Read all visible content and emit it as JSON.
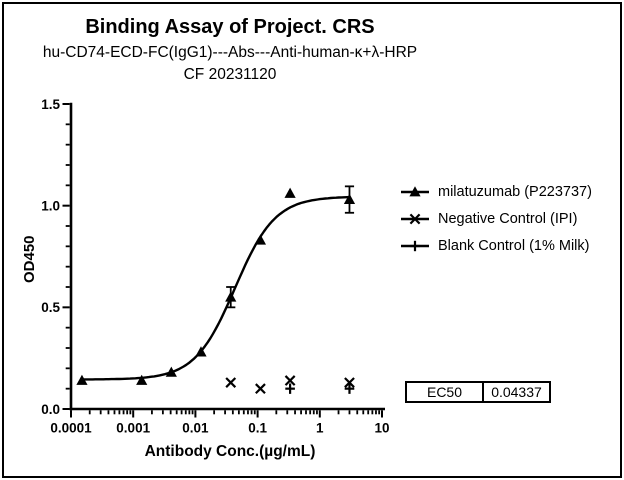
{
  "heading": {
    "title": "Binding Assay of Project. CRS",
    "subtitle": "hu-CD74-ECD-FC(IgG1)---Abs---Anti-human-κ+λ-HRP",
    "line3": "CF 20231120"
  },
  "chart_data": {
    "type": "scatter",
    "log_x": true,
    "grid": false,
    "legend_position": "right",
    "xlabel": "Antibody Conc.(µg/mL)",
    "ylabel": "OD450",
    "xlim": [
      0.0001,
      10
    ],
    "ylim": [
      0.0,
      1.5
    ],
    "x_ticks": [
      0.0001,
      0.001,
      0.01,
      0.1,
      1,
      10
    ],
    "x_tick_labels": [
      "0.0001",
      "0.001",
      "0.01",
      "0.1",
      "1",
      "10"
    ],
    "y_ticks": [
      0.0,
      0.5,
      1.0,
      1.5
    ],
    "y_tick_labels": [
      "0.0",
      "0.5",
      "1.0",
      "1.5"
    ],
    "y_minor_step": 0.1,
    "axis_color": "#000000",
    "series": [
      {
        "name": "milatuzumab (P223737)",
        "marker": "triangle",
        "color": "#000000",
        "x": [
          0.00015,
          0.00137,
          0.0041,
          0.0123,
          0.037,
          0.111,
          0.333,
          3
        ],
        "y": [
          0.14,
          0.14,
          0.18,
          0.28,
          0.55,
          0.83,
          1.06,
          1.03
        ],
        "yerr": [
          0,
          0,
          0,
          0,
          0.05,
          0,
          0,
          0.065
        ],
        "fit": {
          "type": "4PL",
          "bottom": 0.145,
          "top": 1.045,
          "ec50": 0.04337,
          "hillslope": 1.35,
          "x_range": [
            0.00015,
            3
          ]
        }
      },
      {
        "name": "Negative Control (IPI)",
        "marker": "x",
        "color": "#000000",
        "x": [
          0.037,
          0.111,
          0.333,
          3
        ],
        "y": [
          0.13,
          0.1,
          0.14,
          0.13
        ],
        "yerr": [
          0,
          0,
          0,
          0
        ]
      },
      {
        "name": "Blank Control (1% Milk)",
        "marker": "plus",
        "color": "#000000",
        "x": [
          0.333,
          3
        ],
        "y": [
          0.1,
          0.1
        ],
        "yerr": [
          0,
          0
        ]
      }
    ]
  },
  "results_table": {
    "rows": [
      {
        "label": "EC50",
        "value": "0.04337"
      }
    ]
  }
}
